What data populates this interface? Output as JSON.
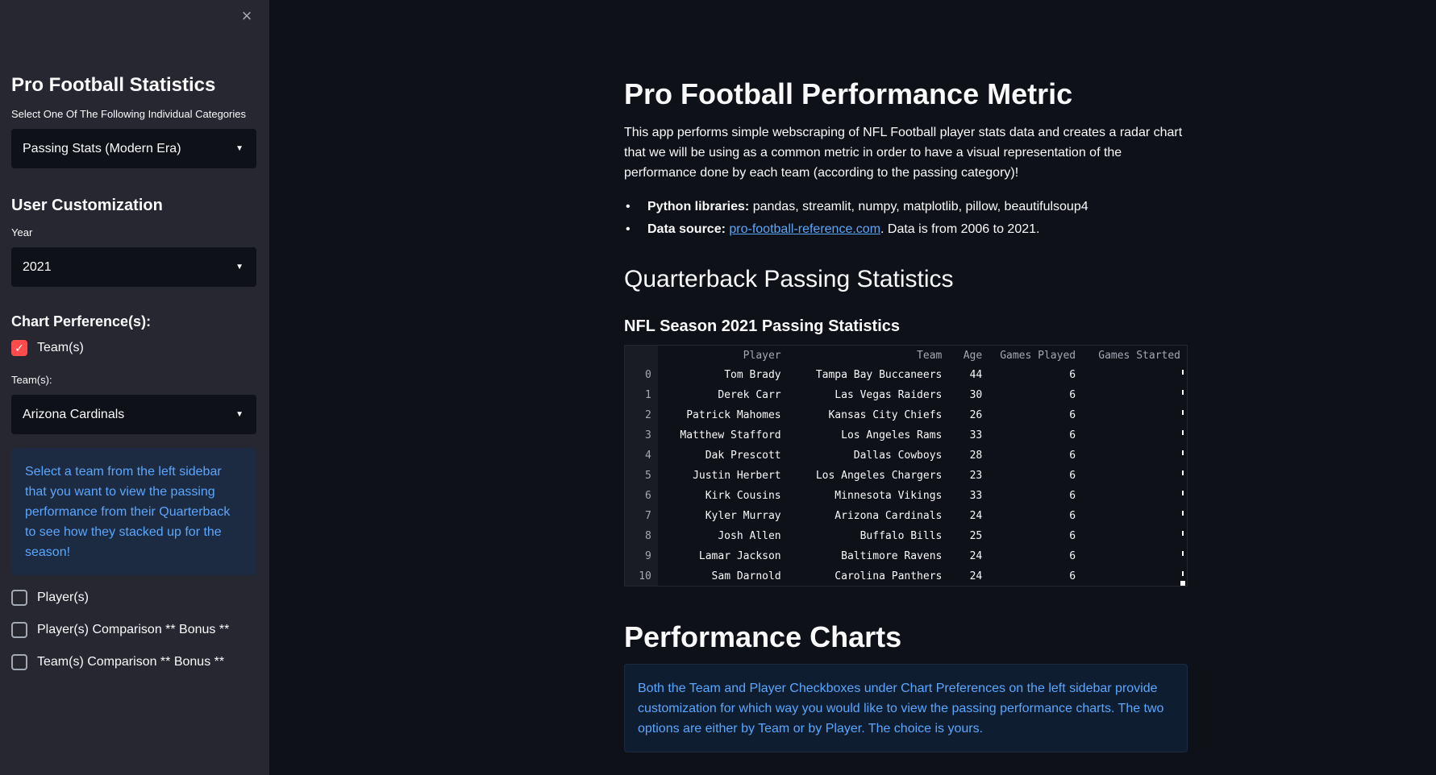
{
  "sidebar": {
    "close_icon": "×",
    "title": "Pro Football Statistics",
    "category_label": "Select One Of The Following Individual Categories",
    "category_value": "Passing Stats (Modern Era)",
    "customization_title": "User Customization",
    "year_label": "Year",
    "year_value": "2021",
    "chart_pref_title": "Chart Perference(s):",
    "teams_checkbox": {
      "label": "Team(s)",
      "checked": true
    },
    "teams_select_label": "Team(s):",
    "teams_select_value": "Arizona Cardinals",
    "info_text": "Select a team from the left sidebar that you want to view the passing performance from their Quarterback to see how they stacked up for the season!",
    "players_checkbox": {
      "label": "Player(s)",
      "checked": false
    },
    "players_compare_checkbox": {
      "label": "Player(s) Comparison ** Bonus **",
      "checked": false
    },
    "teams_compare_checkbox": {
      "label": "Team(s) Comparison ** Bonus **",
      "checked": false
    }
  },
  "main": {
    "title": "Pro Football Performance Metric",
    "intro": "This app performs simple webscraping of NFL Football player stats data and creates a radar chart that we will be using as a common metric in order to have a visual representation of the performance done by each team (according to the passing category)!",
    "bullet1_label": "Python libraries:",
    "bullet1_text": " pandas, streamlit, numpy, matplotlib, pillow, beautifulsoup4",
    "bullet2_label": "Data source:",
    "bullet2_link": "pro-football-reference.com",
    "bullet2_text": ". Data is from 2006 to 2021.",
    "section_title": "Quarterback Passing Statistics",
    "table_title": "NFL Season 2021 Passing Statistics",
    "table": {
      "columns": [
        "Player",
        "Team",
        "Age",
        "Games Played",
        "Games Started"
      ],
      "rows": [
        [
          "0",
          "Tom Brady",
          "Tampa Bay Buccaneers",
          "44",
          "6"
        ],
        [
          "1",
          "Derek Carr",
          "Las Vegas Raiders",
          "30",
          "6"
        ],
        [
          "2",
          "Patrick Mahomes",
          "Kansas City Chiefs",
          "26",
          "6"
        ],
        [
          "3",
          "Matthew Stafford",
          "Los Angeles Rams",
          "33",
          "6"
        ],
        [
          "4",
          "Dak Prescott",
          "Dallas Cowboys",
          "28",
          "6"
        ],
        [
          "5",
          "Justin Herbert",
          "Los Angeles Chargers",
          "23",
          "6"
        ],
        [
          "6",
          "Kirk Cousins",
          "Minnesota Vikings",
          "33",
          "6"
        ],
        [
          "7",
          "Kyler Murray",
          "Arizona Cardinals",
          "24",
          "6"
        ],
        [
          "8",
          "Josh Allen",
          "Buffalo Bills",
          "25",
          "6"
        ],
        [
          "9",
          "Lamar Jackson",
          "Baltimore Ravens",
          "24",
          "6"
        ],
        [
          "10",
          "Sam Darnold",
          "Carolina Panthers",
          "24",
          "6"
        ]
      ]
    },
    "charts_title": "Performance Charts",
    "charts_info": "Both the Team and Player Checkboxes under Chart Preferences on the left sidebar provide customization for which way you would like to view the passing performance charts. The two options are either by Team or by Player. The choice is yours."
  },
  "colors": {
    "accent": "#ff4b4b",
    "info_text": "#5aa7ff",
    "sidebar_bg": "#262730",
    "main_bg": "#0e1117"
  }
}
